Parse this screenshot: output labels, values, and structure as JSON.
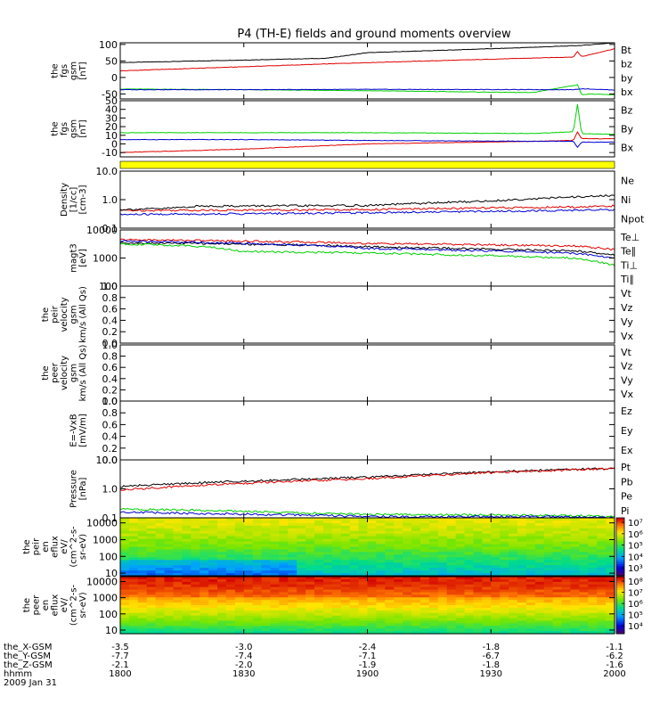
{
  "title": "P4 (TH-E) fields and ground moments overview",
  "colors": {
    "black": "#000000",
    "red": "#e00000",
    "green": "#00d000",
    "blue": "#0000d0",
    "yellow": "#ffff00"
  },
  "chart_data": [
    {
      "type": "line",
      "ylabel": [
        "the",
        "fgs",
        "gsm",
        "[nT]"
      ],
      "yticks": [
        "100",
        "50",
        "0",
        "-50"
      ],
      "ylim": [
        -65,
        105
      ],
      "series": [
        {
          "name": "Bt",
          "color": "#000000",
          "x": [
            1800,
            1850,
            1900,
            1935,
            1952,
            1960,
            2000
          ],
          "y": [
            45,
            58,
            75,
            89,
            97,
            105,
            105
          ]
        },
        {
          "name": "bz",
          "color": "#e00000",
          "x": [
            1800,
            1900,
            1950,
            1951,
            1952,
            2000
          ],
          "y": [
            20,
            45,
            62,
            78,
            63,
            87
          ]
        },
        {
          "name": "by",
          "color": "#00d000",
          "x": [
            1800,
            1830,
            1900,
            1940,
            1951,
            1952,
            1954,
            1970,
            2000
          ],
          "y": [
            -35,
            -37,
            -40,
            -46,
            -22,
            -52,
            -50,
            -58,
            -63
          ]
        },
        {
          "name": "bx",
          "color": "#0000d0",
          "x": [
            1800,
            1830,
            1900,
            1950,
            1952,
            2000
          ],
          "y": [
            -37,
            -37,
            -36,
            -37,
            -34,
            -38
          ]
        }
      ]
    },
    {
      "type": "line",
      "ylabel": [
        "the",
        "fgs",
        "gsm",
        "[nT]"
      ],
      "yticks": [
        "50",
        "40",
        "30",
        "20",
        "10",
        "0",
        "-10"
      ],
      "ylim": [
        -15,
        50
      ],
      "series": [
        {
          "name": "Bz",
          "color": "#e00000",
          "x": [
            1800,
            1830,
            1900,
            1940,
            1950,
            1951,
            1952,
            1960,
            2000
          ],
          "y": [
            -10,
            -6,
            0,
            3,
            4,
            14,
            6,
            6,
            7
          ]
        },
        {
          "name": "By",
          "color": "#00d000",
          "x": [
            1800,
            1830,
            1900,
            1940,
            1950,
            1951,
            1952,
            1960,
            2000
          ],
          "y": [
            13,
            13,
            13,
            12,
            14,
            46,
            12,
            11,
            12
          ]
        },
        {
          "name": "Bx",
          "color": "#0000d0",
          "x": [
            1800,
            1830,
            1900,
            1940,
            1950,
            1951,
            1952,
            1960,
            2000
          ],
          "y": [
            5,
            5,
            4,
            3,
            3,
            -4,
            2,
            2,
            2
          ]
        }
      ]
    },
    {
      "type": "line",
      "ylabel": [
        "Density",
        "[1/cc]",
        "[cm-3]"
      ],
      "yticks": [
        "10.0",
        "1.0",
        "0.1"
      ],
      "ylim": [
        0.1,
        10
      ],
      "log": true,
      "series": [
        {
          "name": "Ne",
          "color": "#e00000",
          "x": [
            1800,
            1830,
            1900,
            1950,
            2000
          ],
          "y": [
            0.42,
            0.43,
            0.45,
            0.55,
            0.6
          ]
        },
        {
          "name": "Ni",
          "color": "#000000",
          "x": [
            1800,
            1810,
            1820,
            1830,
            1900,
            1930,
            1960,
            2000
          ],
          "y": [
            0.45,
            0.48,
            0.6,
            0.6,
            0.62,
            0.9,
            1.4,
            1.6
          ]
        },
        {
          "name": "Npot",
          "color": "#0000d0",
          "x": [
            1800,
            1830,
            1900,
            1950,
            2000
          ],
          "y": [
            0.3,
            0.32,
            0.35,
            0.42,
            0.45
          ]
        }
      ]
    },
    {
      "type": "line",
      "ylabel": [
        "magt3",
        "[eV]"
      ],
      "yticks": [
        "10000",
        "1000",
        "100"
      ],
      "ylim": [
        100,
        10000
      ],
      "log": true,
      "series": [
        {
          "name": "Te⊥",
          "color": "#e00000",
          "x": [
            1800,
            1820,
            1850,
            1900,
            1950,
            2000
          ],
          "y": [
            4500,
            4200,
            3600,
            3300,
            2700,
            2000
          ]
        },
        {
          "name": "Te∥",
          "color": "#000000",
          "x": [
            1800,
            1820,
            1850,
            1900,
            1950,
            2000
          ],
          "y": [
            3500,
            3300,
            2800,
            2500,
            1800,
            1300
          ]
        },
        {
          "name": "Ti⊥",
          "color": "#0000d0",
          "x": [
            1800,
            1820,
            1850,
            1900,
            1950,
            2000
          ],
          "y": [
            4000,
            3600,
            2700,
            2200,
            1500,
            1000
          ]
        },
        {
          "name": "Ti∥",
          "color": "#00d000",
          "x": [
            1800,
            1820,
            1830,
            1900,
            1950,
            2000
          ],
          "y": [
            3200,
            2600,
            1700,
            1500,
            1000,
            550
          ]
        }
      ]
    },
    {
      "type": "line",
      "ylabel": [
        "the",
        "peir",
        "velocity",
        "gsm",
        "km/s (All Qs)"
      ],
      "yticks": [
        "1.0",
        "0.8",
        "0.6",
        "0.4",
        "0.2",
        "0.0"
      ],
      "ylim": [
        0,
        1
      ],
      "series": [
        {
          "name": "Vt",
          "color": "#000000"
        },
        {
          "name": "Vz",
          "color": "#e00000"
        },
        {
          "name": "Vy",
          "color": "#00d000"
        },
        {
          "name": "Vx",
          "color": "#0000d0"
        }
      ]
    },
    {
      "type": "line",
      "ylabel": [
        "the",
        "peer",
        "velocity",
        "gsm",
        "km/s (All Qs)"
      ],
      "yticks": [
        "1.0",
        "0.8",
        "0.6",
        "0.4",
        "0.2",
        "0.0"
      ],
      "ylim": [
        0,
        1
      ],
      "series": [
        {
          "name": "Vt",
          "color": "#000000"
        },
        {
          "name": "Vz",
          "color": "#e00000"
        },
        {
          "name": "Vy",
          "color": "#00d000"
        },
        {
          "name": "Vx",
          "color": "#0000d0"
        }
      ]
    },
    {
      "type": "line",
      "ylabel": [
        "E=-VxB",
        "[mV/m]"
      ],
      "yticks": [
        "1.0",
        "0.8",
        "0.6",
        "0.4",
        "0.2",
        "0.0"
      ],
      "ylim": [
        0,
        1
      ],
      "series": [
        {
          "name": "Ez",
          "color": "#e00000"
        },
        {
          "name": "Ey",
          "color": "#00d000"
        },
        {
          "name": "Ex",
          "color": "#0000d0"
        }
      ]
    },
    {
      "type": "line",
      "ylabel": [
        "Pressure",
        "[nPa]"
      ],
      "yticks": [
        "10.0",
        "1.0",
        "0.1"
      ],
      "ylim": [
        0.1,
        10
      ],
      "log": true,
      "series": [
        {
          "name": "Pt",
          "color": "#000000",
          "x": [
            1800,
            1900,
            2000
          ],
          "y": [
            1.2,
            2.5,
            5.2
          ]
        },
        {
          "name": "Pb",
          "color": "#e00000",
          "x": [
            1800,
            1900,
            2000
          ],
          "y": [
            0.9,
            2.2,
            5.0
          ]
        },
        {
          "name": "Pe",
          "color": "#00d000",
          "x": [
            1800,
            1820,
            1850,
            1900,
            1950,
            2000
          ],
          "y": [
            0.2,
            0.18,
            0.14,
            0.13,
            0.12,
            0.11
          ]
        },
        {
          "name": "Pi",
          "color": "#0000d0",
          "x": [
            1800,
            1820,
            1850,
            1900,
            1950,
            2000
          ],
          "y": [
            0.16,
            0.14,
            0.12,
            0.11,
            0.11,
            0.1
          ]
        }
      ]
    },
    {
      "type": "heatmap",
      "ylabel": [
        "the",
        "peir",
        "en",
        "eflux",
        "eV/",
        "(cm^2-s-",
        "sr-eV)"
      ],
      "yticks": [
        "10000",
        "1000",
        "100",
        "10"
      ],
      "ylim": [
        7,
        20000
      ],
      "log": true,
      "colorbar": {
        "ticks": [
          "10⁷",
          "10⁶",
          "10⁵",
          "10⁴",
          "10³"
        ],
        "range": [
          2.3,
          7.4
        ]
      }
    },
    {
      "type": "heatmap",
      "ylabel": [
        "the",
        "peer",
        "en",
        "eflux",
        "eV/",
        "(cm^2-s-",
        "sr-eV)"
      ],
      "yticks": [
        "10000",
        "1000",
        "100",
        "10"
      ],
      "ylim": [
        6,
        20000
      ],
      "log": true,
      "colorbar": {
        "ticks": [
          "10⁸",
          "10⁷",
          "10⁶",
          "10⁵",
          "10⁴"
        ],
        "range": [
          3.3,
          8.4
        ]
      }
    }
  ],
  "xaxis": {
    "range": [
      1800,
      2000
    ],
    "tick_positions": [
      1800,
      1830,
      1900,
      1930,
      2000
    ],
    "rows": [
      {
        "label": "the_X-GSM",
        "values": [
          "-3.5",
          "-3.0",
          "-2.4",
          "-1.8",
          "-1.1"
        ]
      },
      {
        "label": "the_Y-GSM",
        "values": [
          "-7.7",
          "-7.4",
          "-7.1",
          "-6.7",
          "-6.2"
        ]
      },
      {
        "label": "the_Z-GSM",
        "values": [
          "-2.1",
          "-2.0",
          "-1.9",
          "-1.8",
          "-1.6"
        ]
      },
      {
        "label": "hhmm",
        "values": [
          "1800",
          "1830",
          "1900",
          "1930",
          "2000"
        ]
      }
    ],
    "date": "2009 Jan 31"
  }
}
